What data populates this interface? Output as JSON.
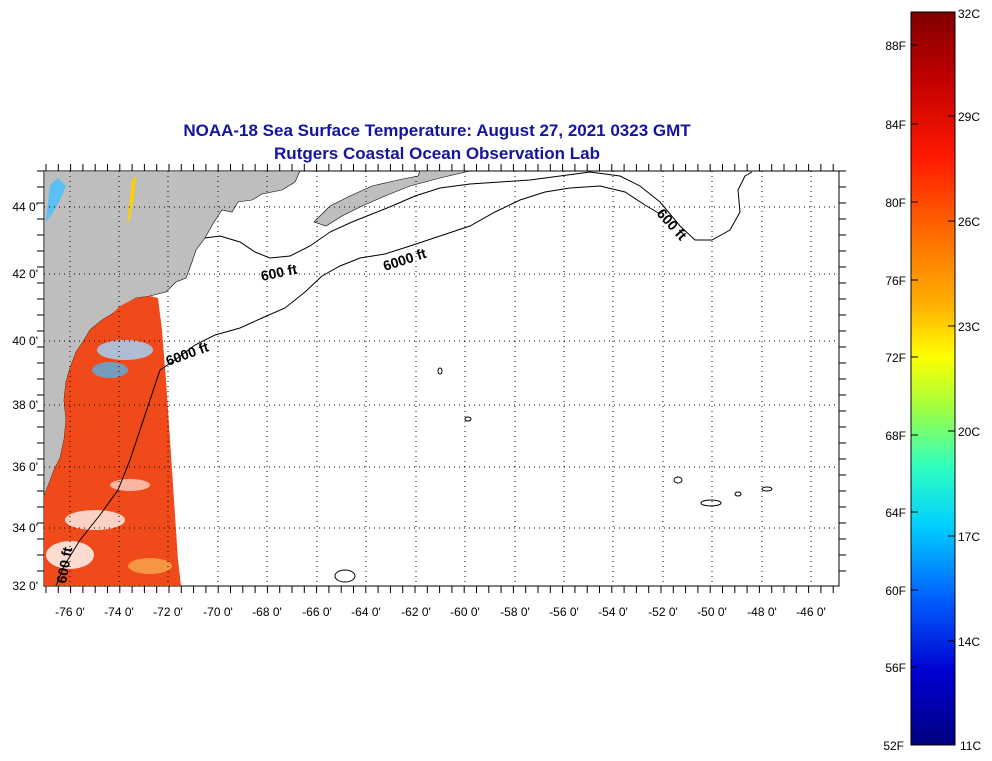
{
  "map": {
    "title_line1": "NOAA-18 Sea Surface Temperature:  August 27, 2021 0323 GMT",
    "title_line2": "Rutgers Coastal Ocean Observation Lab",
    "lon_labels": [
      "-76 0'",
      "-74 0'",
      "-72 0'",
      "-70 0'",
      "-68 0'",
      "-66 0'",
      "-64 0'",
      "-62 0'",
      "-60 0'",
      "-58 0'",
      "-56 0'",
      "-54 0'",
      "-52 0'",
      "-50 0'",
      "-48 0'",
      "-46 0'"
    ],
    "lat_labels": [
      "44 0'",
      "42 0'",
      "40 0'",
      "38 0'",
      "36 0'",
      "34 0'",
      "32 0'"
    ],
    "contour_labels": [
      {
        "text": "600 ft"
      },
      {
        "text": "6000 ft"
      },
      {
        "text": "600 ft"
      },
      {
        "text": "6000 ft"
      },
      {
        "text": "600 ft"
      }
    ],
    "land_color": "#bebebe",
    "sst_color": "#f04a1a",
    "grid": "dotted"
  },
  "colorbar": {
    "fahrenheit_labels": [
      "88F",
      "84F",
      "80F",
      "76F",
      "72F",
      "68F",
      "64F",
      "60F",
      "56F",
      "52F"
    ],
    "celsius_labels": [
      "32C",
      "29C",
      "26C",
      "23C",
      "20C",
      "17C",
      "14C",
      "11C"
    ],
    "gradient": [
      "#800000",
      "#c00000",
      "#ff1a00",
      "#ff6a00",
      "#ffb000",
      "#ffff00",
      "#a0ff40",
      "#30ffc0",
      "#00d0ff",
      "#0060ff",
      "#0000d0",
      "#000080"
    ]
  }
}
